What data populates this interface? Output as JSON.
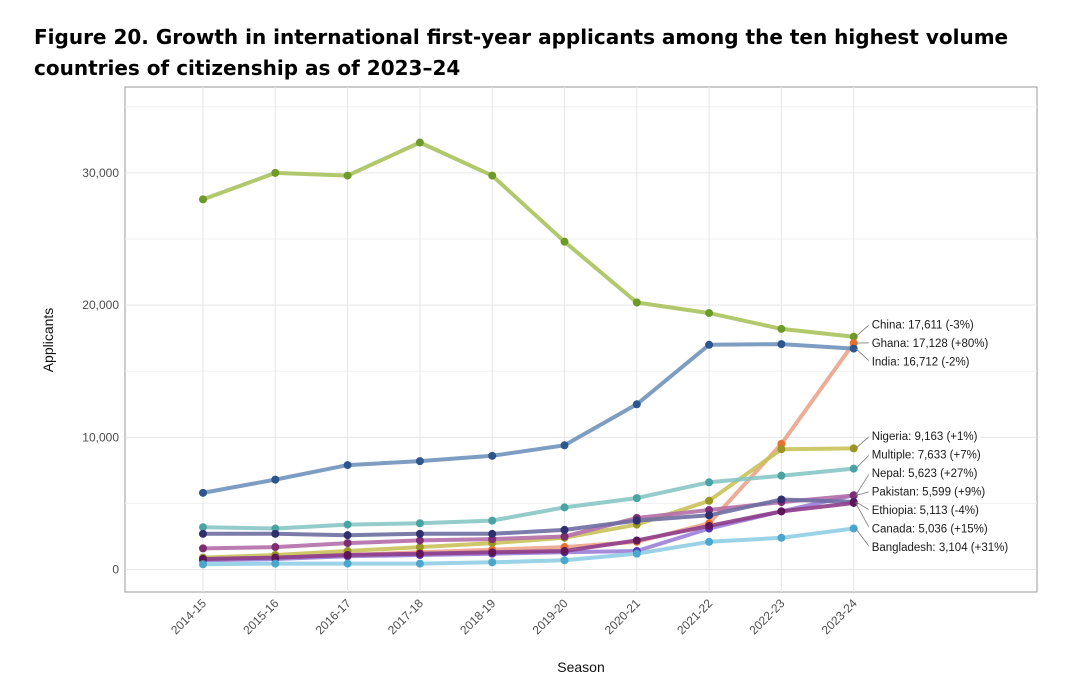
{
  "figure": {
    "title": "Figure 20. Growth in international first-year applicants among the ten highest volume countries of citizenship as of 2023–24"
  },
  "chart_data": {
    "type": "line",
    "title": "Figure 20. Growth in international first-year applicants among the ten highest volume countries of citizenship as of 2023–24",
    "xlabel": "Season",
    "ylabel": "Applicants",
    "ylim": [
      -1700,
      36500
    ],
    "yticks": [
      0,
      10000,
      20000,
      30000
    ],
    "ytick_labels": [
      "0",
      "10,000",
      "20,000",
      "30,000"
    ],
    "grid": true,
    "categories": [
      "2014-15",
      "2015-16",
      "2016-17",
      "2017-18",
      "2018-19",
      "2019-20",
      "2020-21",
      "2021-22",
      "2022-23",
      "2023-24"
    ],
    "series": [
      {
        "name": "China",
        "color": "#a9c25d",
        "dot": "#6e9a28",
        "label": "China: 17,611 (-3%)",
        "values": [
          28000,
          30000,
          29800,
          32300,
          29800,
          24800,
          20200,
          19400,
          18200,
          17611
        ]
      },
      {
        "name": "Ghana",
        "color": "#eba48c",
        "dot": "#e8702f",
        "label": "Ghana: 17,128 (+80%)",
        "values": [
          700,
          900,
          1100,
          1300,
          1500,
          1700,
          2100,
          3500,
          9500,
          17128
        ]
      },
      {
        "name": "India",
        "color": "#6f93bb",
        "dot": "#2d558e",
        "label": "India: 16,712 (-2%)",
        "values": [
          5800,
          6800,
          7900,
          8200,
          8600,
          9400,
          12500,
          17000,
          17050,
          16712
        ]
      },
      {
        "name": "Nigeria",
        "color": "#c9c25a",
        "dot": "#9a9622",
        "label": "Nigeria: 9,163 (+1%)",
        "values": [
          900,
          1100,
          1400,
          1700,
          2000,
          2400,
          3400,
          5200,
          9100,
          9163
        ]
      },
      {
        "name": "Multiple",
        "color": "#88c5c5",
        "dot": "#4aa3a3",
        "label": "Multiple: 7,633 (+7%)",
        "values": [
          3200,
          3100,
          3400,
          3500,
          3700,
          4700,
          5400,
          6600,
          7100,
          7633
        ]
      },
      {
        "name": "Nepal",
        "color": "#9b80d6",
        "dot": "#5533b0",
        "label": "Nepal: 5,623 (+27%)",
        "values": [
          700,
          800,
          1000,
          1100,
          1200,
          1300,
          1400,
          3100,
          4400,
          5623
        ]
      },
      {
        "name": "Pakistan",
        "color": "#b46fa8",
        "dot": "#7e2d72",
        "label": "Pakistan: 5,599 (+9%)",
        "values": [
          1600,
          1700,
          2000,
          2200,
          2300,
          2500,
          3900,
          4500,
          5100,
          5599
        ]
      },
      {
        "name": "Ethiopia",
        "color": "#6e6ea2",
        "dot": "#2f2f6e",
        "label": "Ethiopia: 5,113 (-4%)",
        "values": [
          2700,
          2700,
          2600,
          2700,
          2700,
          3000,
          3700,
          4100,
          5300,
          5113
        ]
      },
      {
        "name": "Canada",
        "color": "#8e3d8a",
        "dot": "#5e1659",
        "label": "Canada: 5,036 (+15%)",
        "values": [
          800,
          900,
          1100,
          1200,
          1300,
          1400,
          2200,
          3300,
          4400,
          5036
        ]
      },
      {
        "name": "Bangladesh",
        "color": "#8fcde6",
        "dot": "#4aa6cd",
        "label": "Bangladesh: 3,104 (+31%)",
        "values": [
          400,
          450,
          450,
          450,
          550,
          700,
          1200,
          2100,
          2400,
          3104
        ]
      }
    ],
    "annotations": [
      {
        "text": "China: 17,611 (-3%)",
        "series": "China"
      },
      {
        "text": "Ghana: 17,128 (+80%)",
        "series": "Ghana"
      },
      {
        "text": "India: 16,712 (-2%)",
        "series": "India"
      },
      {
        "text": "Nigeria: 9,163 (+1%)",
        "series": "Nigeria"
      },
      {
        "text": "Multiple: 7,633 (+7%)",
        "series": "Multiple"
      },
      {
        "text": "Nepal: 5,623 (+27%)",
        "series": "Nepal"
      },
      {
        "text": "Pakistan: 5,599 (+9%)",
        "series": "Pakistan"
      },
      {
        "text": "Ethiopia: 5,113 (-4%)",
        "series": "Ethiopia"
      },
      {
        "text": "Canada: 5,036 (+15%)",
        "series": "Canada"
      },
      {
        "text": "Bangladesh: 3,104 (+31%)",
        "series": "Bangladesh"
      }
    ]
  }
}
